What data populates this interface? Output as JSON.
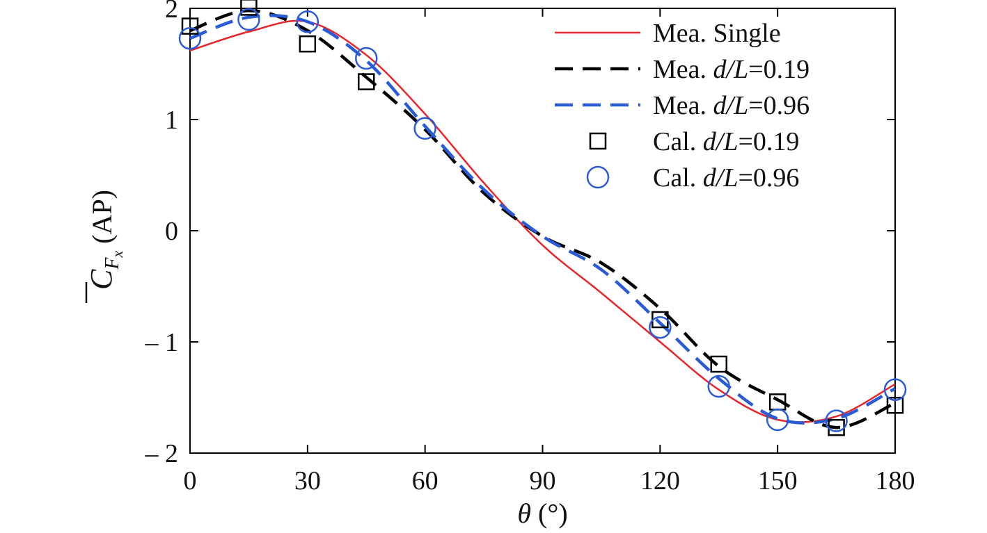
{
  "chart_data": {
    "type": "line",
    "title": "",
    "xlabel": {
      "symbol": "θ",
      "unit": " (°)"
    },
    "ylabel": {
      "symbol": "C",
      "sub": "F",
      "subsub": "x",
      "suffix": " (AP)"
    },
    "xlim": [
      0,
      180
    ],
    "ylim": [
      -2,
      2
    ],
    "xticks": [
      0,
      30,
      60,
      90,
      120,
      150,
      180
    ],
    "yticks": [
      -2,
      -1,
      0,
      1,
      2
    ],
    "ytick_labels": [
      "– 2",
      "– 1",
      "0",
      "1",
      "2"
    ],
    "grid": false,
    "legend_position": "top-right",
    "series": [
      {
        "id": "mea-single",
        "legend": {
          "prefix": "Mea. ",
          "italic": "",
          "suffix": "Single"
        },
        "style": "solid-line",
        "color": "#e8262a",
        "x": [
          0,
          15,
          30,
          45,
          60,
          75,
          90,
          105,
          120,
          135,
          150,
          165,
          180
        ],
        "values": [
          1.62,
          1.79,
          1.88,
          1.58,
          1.05,
          0.43,
          -0.13,
          -0.56,
          -1.0,
          -1.43,
          -1.7,
          -1.67,
          -1.38
        ]
      },
      {
        "id": "mea-dl-019",
        "legend": {
          "prefix": "Mea. ",
          "italic": "d/L",
          "suffix": "=0.19"
        },
        "style": "dashed-line",
        "color": "#000000",
        "x": [
          0,
          15,
          30,
          45,
          60,
          75,
          90,
          105,
          120,
          135,
          150,
          165,
          180
        ],
        "values": [
          1.8,
          1.98,
          1.8,
          1.38,
          0.91,
          0.34,
          -0.05,
          -0.29,
          -0.7,
          -1.22,
          -1.52,
          -1.77,
          -1.55
        ]
      },
      {
        "id": "mea-dl-096",
        "legend": {
          "prefix": "Mea. ",
          "italic": "d/L",
          "suffix": "=0.96"
        },
        "style": "dashed-line",
        "color": "#2a5bd7",
        "x": [
          0,
          15,
          30,
          45,
          60,
          75,
          90,
          105,
          120,
          135,
          150,
          165,
          180
        ],
        "values": [
          1.73,
          1.92,
          1.88,
          1.53,
          0.94,
          0.37,
          -0.05,
          -0.35,
          -0.83,
          -1.33,
          -1.69,
          -1.69,
          -1.42
        ]
      },
      {
        "id": "cal-dl-019",
        "legend": {
          "prefix": "Cal. ",
          "italic": "d/L",
          "suffix": "=0.19"
        },
        "style": "square-marker",
        "color": "#000000",
        "x": [
          0,
          15,
          30,
          45,
          120,
          135,
          150,
          165,
          180
        ],
        "values": [
          1.84,
          2.01,
          1.68,
          1.34,
          -0.8,
          -1.2,
          -1.54,
          -1.77,
          -1.57
        ]
      },
      {
        "id": "cal-dl-096",
        "legend": {
          "prefix": "Cal. ",
          "italic": "d/L",
          "suffix": "=0.96"
        },
        "style": "circle-marker",
        "color": "#2a5bd7",
        "x": [
          0,
          15,
          30,
          45,
          60,
          120,
          135,
          150,
          165,
          180
        ],
        "values": [
          1.73,
          1.9,
          1.88,
          1.55,
          0.92,
          -0.87,
          -1.4,
          -1.7,
          -1.71,
          -1.43
        ]
      }
    ]
  }
}
